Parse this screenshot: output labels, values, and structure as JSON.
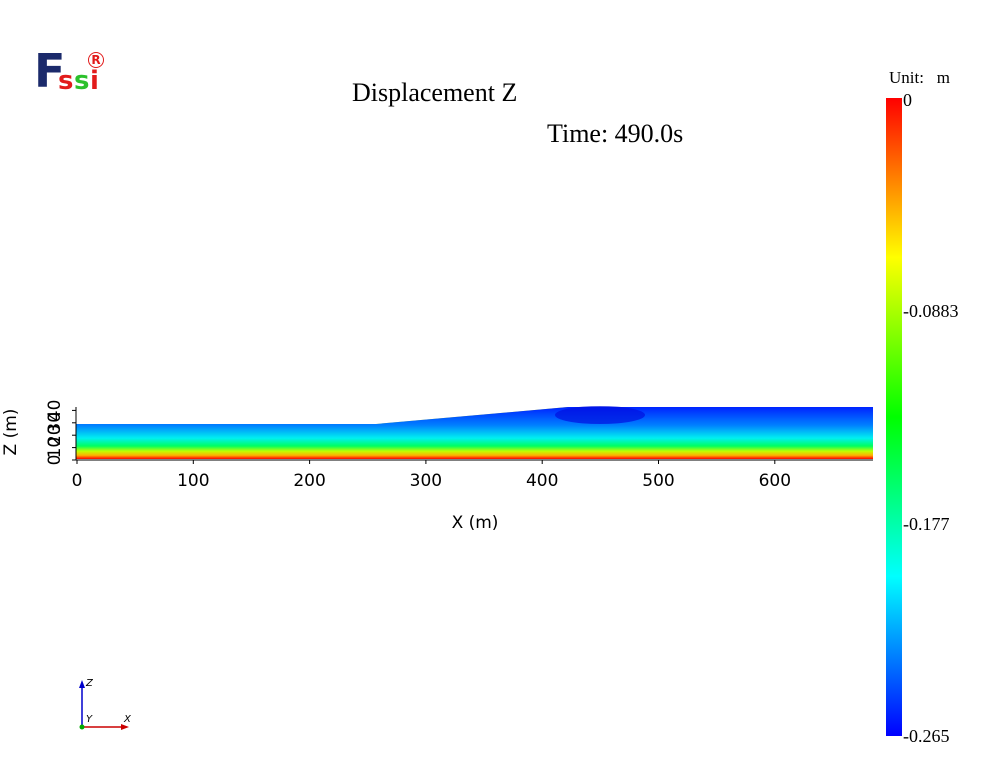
{
  "logo": {
    "f": "F",
    "s1": "s",
    "s2": "s",
    "i": "i",
    "reg": "R"
  },
  "title": "Displacement Z",
  "subtitle": "Time: 490.0s",
  "colorbar": {
    "unit_label": "Unit:   m",
    "tick_labels": [
      "0",
      "-0.0883",
      "-0.177",
      "-0.265"
    ],
    "min": -0.265,
    "max": 0,
    "colormap": "rainbow (blue-cyan-green-yellow-red)",
    "colors": [
      "#0000ff",
      "#00ffff",
      "#00ff00",
      "#ffff00",
      "#ff0000"
    ]
  },
  "chart_data": {
    "type": "heatmap",
    "title": "Displacement Z",
    "subtitle": "Time: 490.0s",
    "xlabel": "X (m)",
    "ylabel": "Z (m)",
    "x_ticks": [
      "0",
      "100",
      "200",
      "300",
      "400",
      "500",
      "600"
    ],
    "y_ticks": [
      "0",
      "10",
      "20",
      "30",
      "40"
    ],
    "xlim": [
      0,
      684
    ],
    "zlim": [
      0,
      43
    ],
    "domain_profile": {
      "x": [
        0,
        255,
        425,
        684
      ],
      "z_top": [
        27,
        27,
        43,
        43
      ]
    },
    "field": "Displacement Z",
    "value_range": [
      -0.265,
      0
    ],
    "units": "m"
  },
  "triad": {
    "z": "Z",
    "y": "Y",
    "x": "X"
  }
}
